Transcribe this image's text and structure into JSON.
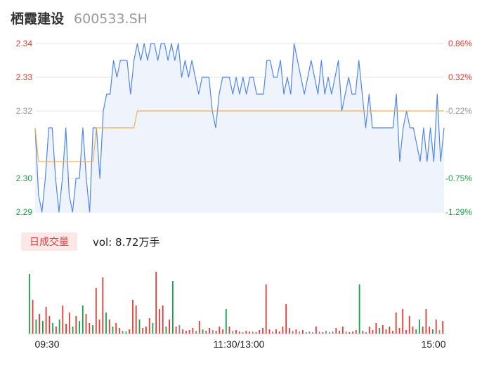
{
  "header": {
    "name": "栖霞建设",
    "code": "600533.SH"
  },
  "volume_panel": {
    "badge": "日成交量",
    "vol_label": "vol: 8.72万手"
  },
  "colors": {
    "price_line": "#4f86ee",
    "avg_line": "#f0b44c",
    "area_fill": "#eef3fc",
    "up": "#e8382f",
    "down": "#16a34a",
    "flat": "#888888",
    "grid": "#e6e6e6"
  },
  "chart_data": [
    {
      "type": "line",
      "name": "intraday-price",
      "y_left_ticks": [
        "2.34",
        "2.33",
        "2.32",
        "2.30",
        "2.29"
      ],
      "y_left_tick_values": [
        2.34,
        2.33,
        2.32,
        2.3,
        2.29
      ],
      "y_right_ticks": [
        "0.86%",
        "0.32%",
        "-0.22%",
        "-0.75%",
        "-1.29%"
      ],
      "ylim": [
        2.29,
        2.34
      ],
      "x_ticks": [
        "09:30",
        "11:30/13:00",
        "15:00"
      ],
      "price": [
        2.315,
        2.295,
        2.29,
        2.3,
        2.315,
        2.315,
        2.3,
        2.29,
        2.3,
        2.315,
        2.295,
        2.29,
        2.3,
        2.3,
        2.315,
        2.3,
        2.29,
        2.315,
        2.315,
        2.3,
        2.32,
        2.325,
        2.325,
        2.335,
        2.33,
        2.335,
        2.335,
        2.335,
        2.325,
        2.335,
        2.34,
        2.335,
        2.34,
        2.335,
        2.34,
        2.34,
        2.335,
        2.34,
        2.34,
        2.335,
        2.34,
        2.335,
        2.34,
        2.33,
        2.335,
        2.33,
        2.335,
        2.33,
        2.325,
        2.33,
        2.33,
        2.33,
        2.32,
        2.315,
        2.325,
        2.33,
        2.33,
        2.33,
        2.325,
        2.33,
        2.325,
        2.33,
        2.325,
        2.33,
        2.33,
        2.325,
        2.325,
        2.325,
        2.335,
        2.335,
        2.33,
        2.33,
        2.335,
        2.325,
        2.33,
        2.325,
        2.34,
        2.335,
        2.33,
        2.325,
        2.33,
        2.335,
        2.33,
        2.325,
        2.335,
        2.325,
        2.33,
        2.325,
        2.33,
        2.335,
        2.32,
        2.325,
        2.33,
        2.325,
        2.325,
        2.335,
        2.325,
        2.315,
        2.325,
        2.315,
        2.315,
        2.315,
        2.315,
        2.315,
        2.315,
        2.315,
        2.325,
        2.305,
        2.315,
        2.32,
        2.315,
        2.315,
        2.31,
        2.305,
        2.315,
        2.305,
        2.315,
        2.305,
        2.325,
        2.305,
        2.315
      ],
      "avg_price": [
        2.315,
        2.305,
        2.305,
        2.305,
        2.305,
        2.305,
        2.305,
        2.305,
        2.305,
        2.305,
        2.305,
        2.305,
        2.305,
        2.305,
        2.305,
        2.305,
        2.305,
        2.305,
        2.315,
        2.315,
        2.315,
        2.315,
        2.315,
        2.315,
        2.315,
        2.315,
        2.315,
        2.315,
        2.315,
        2.315,
        2.32,
        2.32,
        2.32,
        2.32,
        2.32,
        2.32,
        2.32,
        2.32,
        2.32,
        2.32,
        2.32,
        2.32,
        2.32,
        2.32,
        2.32,
        2.32,
        2.32,
        2.32,
        2.32,
        2.32,
        2.32,
        2.32,
        2.32,
        2.32,
        2.32,
        2.32,
        2.32,
        2.32,
        2.32,
        2.32,
        2.32,
        2.32,
        2.32,
        2.32,
        2.32,
        2.32,
        2.32,
        2.32,
        2.32,
        2.32,
        2.32,
        2.32,
        2.32,
        2.32,
        2.32,
        2.32,
        2.32,
        2.32,
        2.32,
        2.32,
        2.32,
        2.32,
        2.32,
        2.32,
        2.32,
        2.32,
        2.32,
        2.32,
        2.32,
        2.32,
        2.32,
        2.32,
        2.32,
        2.32,
        2.32,
        2.32,
        2.32,
        2.32,
        2.32,
        2.32,
        2.32,
        2.32,
        2.32,
        2.32,
        2.32,
        2.32,
        2.32,
        2.32,
        2.32,
        2.32,
        2.32,
        2.32,
        2.32,
        2.32,
        2.32,
        2.32,
        2.32,
        2.32,
        2.32,
        2.32,
        2.32
      ]
    },
    {
      "type": "bar",
      "name": "intraday-volume",
      "values": [
        85,
        48,
        20,
        28,
        18,
        38,
        25,
        15,
        10,
        20,
        40,
        14,
        30,
        10,
        25,
        18,
        40,
        28,
        15,
        12,
        65,
        20,
        80,
        30,
        20,
        10,
        15,
        8,
        4,
        3,
        6,
        48,
        40,
        20,
        8,
        10,
        22,
        15,
        88,
        35,
        40,
        10,
        20,
        75,
        10,
        12,
        6,
        4,
        5,
        8,
        4,
        18,
        6,
        4,
        8,
        5,
        4,
        10,
        6,
        35,
        10,
        4,
        5,
        3,
        2,
        4,
        3,
        3,
        2,
        5,
        8,
        70,
        6,
        3,
        6,
        3,
        10,
        42,
        8,
        4,
        6,
        3,
        5,
        2,
        3,
        2,
        10,
        3,
        2,
        4,
        2,
        3,
        8,
        4,
        10,
        3,
        2,
        3,
        5,
        70,
        4,
        2,
        10,
        5,
        15,
        8,
        12,
        6,
        10,
        4,
        30,
        8,
        35,
        5,
        25,
        10,
        6,
        20,
        10,
        35,
        10,
        6,
        20,
        5,
        18
      ],
      "directions": [
        "d",
        "u",
        "d",
        "u",
        "d",
        "u",
        "u",
        "d",
        "u",
        "d",
        "u",
        "u",
        "u",
        "d",
        "u",
        "d",
        "d",
        "u",
        "u",
        "d",
        "u",
        "u",
        "u",
        "d",
        "u",
        "d",
        "u",
        "u",
        "f",
        "d",
        "u",
        "u",
        "u",
        "d",
        "u",
        "u",
        "u",
        "d",
        "u",
        "u",
        "u",
        "d",
        "u",
        "d",
        "u",
        "f",
        "u",
        "u",
        "u",
        "u",
        "f",
        "u",
        "d",
        "u",
        "u",
        "f",
        "u",
        "u",
        "u",
        "d",
        "u",
        "f",
        "u",
        "u",
        "f",
        "u",
        "u",
        "f",
        "u",
        "u",
        "u",
        "u",
        "u",
        "f",
        "u",
        "u",
        "u",
        "u",
        "u",
        "f",
        "u",
        "f",
        "u",
        "f",
        "f",
        "f",
        "u",
        "f",
        "u",
        "f",
        "f",
        "f",
        "u",
        "u",
        "u",
        "f",
        "u",
        "u",
        "u",
        "d",
        "u",
        "f",
        "u",
        "u",
        "u",
        "d",
        "u",
        "u",
        "u",
        "u",
        "u",
        "u",
        "u",
        "u",
        "u",
        "u",
        "d",
        "d",
        "u",
        "u",
        "u",
        "d",
        "u",
        "f",
        "u"
      ]
    }
  ]
}
